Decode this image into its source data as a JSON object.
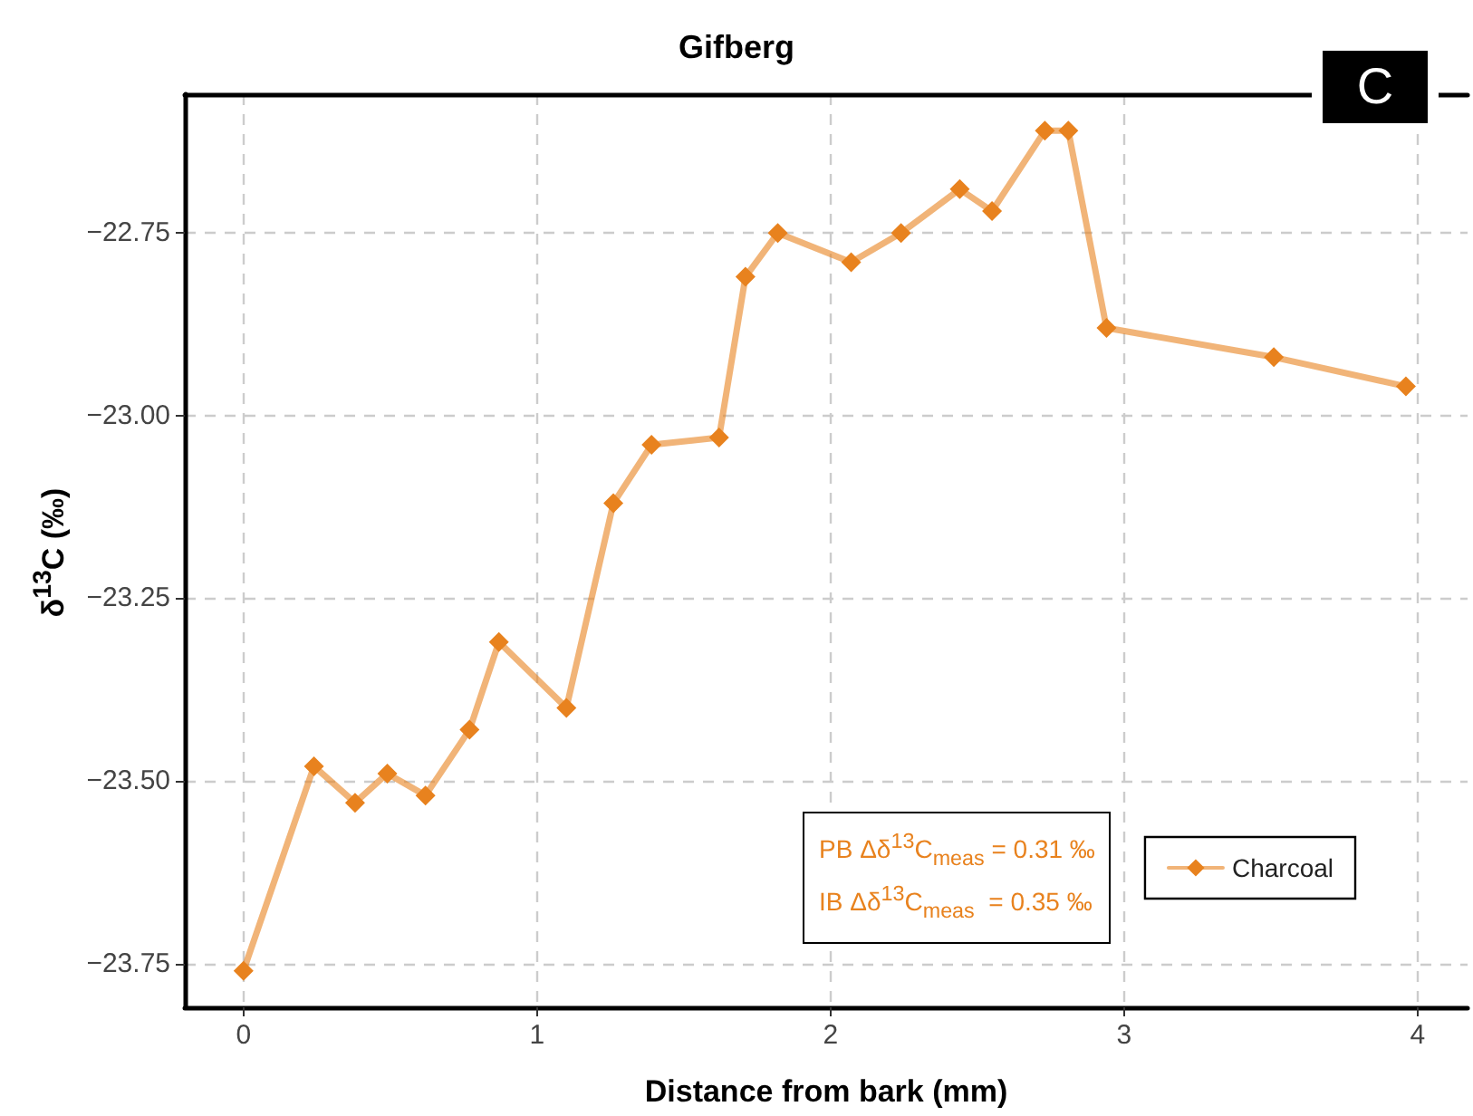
{
  "chart_data": {
    "type": "line",
    "title": "Gifberg",
    "xlabel": "Distance from bark (mm)",
    "ylabel": "δ$^{13}$C (‰)",
    "annotations": [
      "C",
      "PB Δδ$^{13}$C$_{meas}$ = 0.31 ‰",
      "IB Δδ$^{13}$C$_{meas}$  = 0.35 ‰"
    ],
    "xlim": [
      -0.2,
      4.17
    ],
    "xticks": [
      0,
      1,
      2,
      3,
      4
    ],
    "ylim": [
      -23.81,
      -22.56
    ],
    "yticks": [
      {
        "value": -23.75,
        "label": "−23.75"
      },
      {
        "value": -23.5,
        "label": "−23.50"
      },
      {
        "value": -23.25,
        "label": "−23.25"
      },
      {
        "value": -23,
        "label": "−23.00"
      },
      {
        "value": -22.75,
        "label": "−22.75"
      }
    ],
    "grid": true,
    "legend": "bottom right",
    "marker": "diamond",
    "line_style": "solid",
    "series": [
      {
        "name": "Charcoal",
        "color": "#e8821e",
        "x": [
          0,
          0.24,
          0.38,
          0.49,
          0.62,
          0.77,
          0.87,
          1.1,
          1.26,
          1.39,
          1.62,
          1.71,
          1.82,
          2.07,
          2.24,
          2.44,
          2.55,
          2.73,
          2.81,
          2.94,
          3.51,
          3.96
        ],
        "values": [
          -23.76,
          -23.48,
          -23.53,
          -23.49,
          -23.52,
          -23.43,
          -23.31,
          -23.4,
          -23.12,
          -23.04,
          -23.03,
          -22.81,
          -22.75,
          -22.79,
          -22.75,
          -22.69,
          -22.72,
          -22.61,
          -22.61,
          -22.88,
          -22.92,
          -22.96
        ]
      }
    ]
  }
}
